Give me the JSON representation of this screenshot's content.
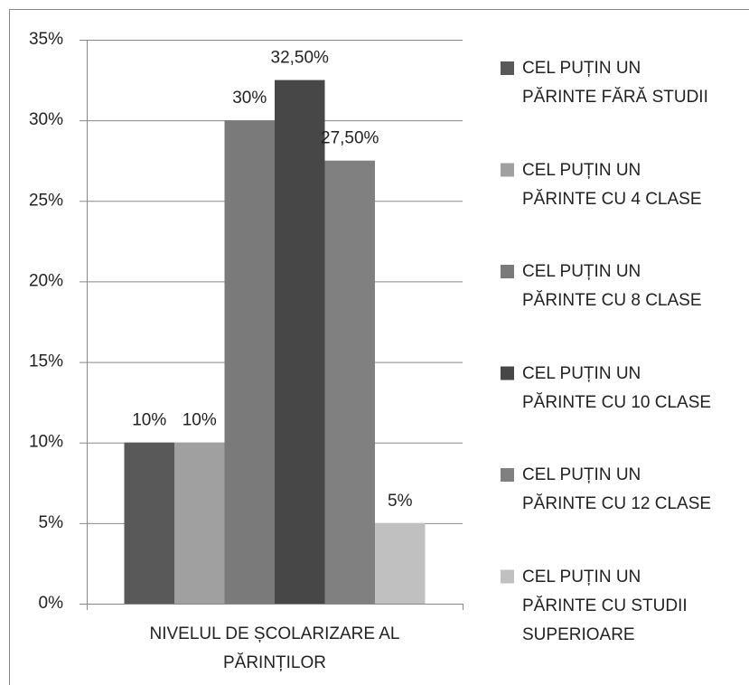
{
  "chart_data": {
    "type": "bar",
    "categories": [
      "NIVELUL DE ȘCOLARIZARE AL PĂRINȚILOR"
    ],
    "series": [
      {
        "name": "CEL PUȚIN UN PĂRINTE FĂRĂ STUDII",
        "color": "#595959",
        "values": [
          10
        ],
        "value_labels": [
          "10%"
        ]
      },
      {
        "name": "CEL PUȚIN UN PĂRINTE CU 4 CLASE",
        "color": "#a0a0a0",
        "values": [
          10
        ],
        "value_labels": [
          "10%"
        ]
      },
      {
        "name": "CEL PUȚIN UN PĂRINTE CU 8 CLASE",
        "color": "#7a7a7a",
        "values": [
          30
        ],
        "value_labels": [
          "30%"
        ]
      },
      {
        "name": "CEL PUȚIN UN PĂRINTE CU 10 CLASE",
        "color": "#474747",
        "values": [
          32.5
        ],
        "value_labels": [
          "32,50%"
        ]
      },
      {
        "name": "CEL PUȚIN UN PĂRINTE CU 12 CLASE",
        "color": "#808080",
        "values": [
          27.5
        ],
        "value_labels": [
          "27,50%"
        ]
      },
      {
        "name": "CEL PUȚIN UN PĂRINTE CU STUDII SUPERIOARE",
        "color": "#c0c0c0",
        "values": [
          5
        ],
        "value_labels": [
          "5%"
        ]
      }
    ],
    "ylim": [
      0,
      35
    ],
    "yticks": [
      {
        "value": 0,
        "label": "0%"
      },
      {
        "value": 5,
        "label": "5%"
      },
      {
        "value": 10,
        "label": "10%"
      },
      {
        "value": 15,
        "label": "15%"
      },
      {
        "value": 20,
        "label": "20%"
      },
      {
        "value": 25,
        "label": "25%"
      },
      {
        "value": 30,
        "label": "30%"
      },
      {
        "value": 35,
        "label": "35%"
      }
    ],
    "grid": true,
    "legend": "right"
  }
}
